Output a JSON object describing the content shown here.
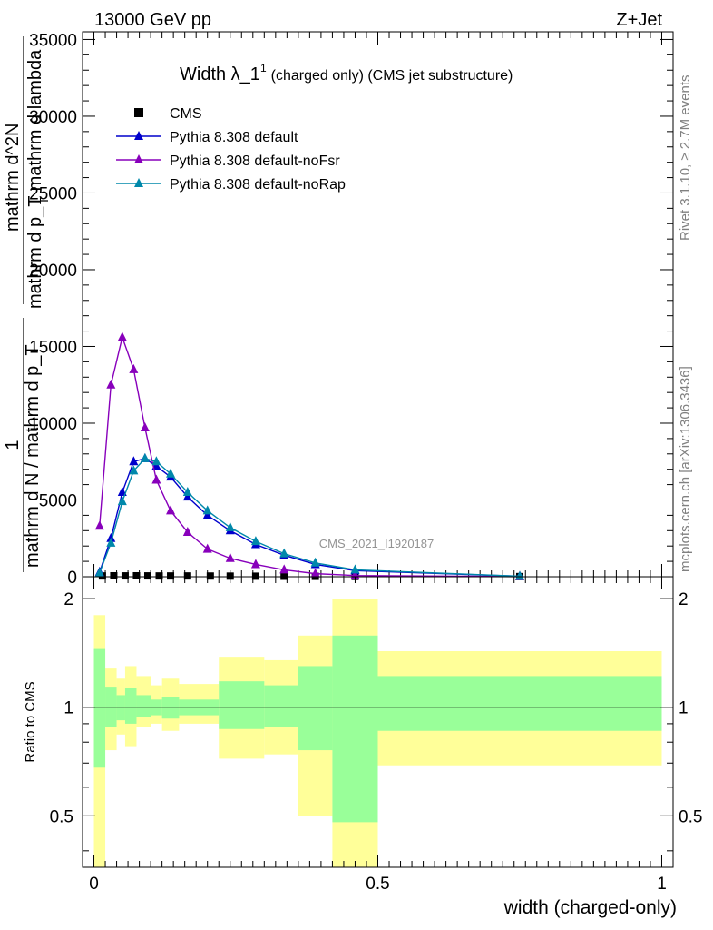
{
  "header": {
    "left": "13000 GeV pp",
    "right": "Z+Jet"
  },
  "side": {
    "rivet": "Rivet 3.1.10, ≥ 2.7M events",
    "mcplots": "mcplots.cern.ch [arXiv:1306.3436]"
  },
  "watermark": "CMS_2021_I1920187",
  "chart_data": [
    {
      "type": "line",
      "title": "Width λ_1",
      "title_sup": "1",
      "title_suffix": "(charged only) (CMS jet substructure)",
      "ylabel_top": "1",
      "ylabel_lines": [
        "mathrm d N / mathrm d p_T",
        "mathrm d^2N",
        "mathrm d p_T mathrm d lambda"
      ],
      "ylabel_sub": "T",
      "ylim": [
        0,
        35500
      ],
      "xlim": [
        -0.02,
        1.02
      ],
      "y_ticks": [
        0,
        5000,
        10000,
        15000,
        20000,
        25000,
        30000,
        35000
      ],
      "legend": {
        "placement": "top-left",
        "entries": [
          "CMS",
          "Pythia 8.308 default",
          "Pythia 8.308 default-noFsr",
          "Pythia 8.308 default-noRap"
        ]
      },
      "series": [
        {
          "name": "CMS",
          "marker": "square",
          "color": "#000000",
          "x": [
            0.015,
            0.035,
            0.055,
            0.075,
            0.095,
            0.115,
            0.135,
            0.165,
            0.205,
            0.24,
            0.285,
            0.335,
            0.39,
            0.46,
            0.75
          ],
          "y": [
            50,
            60,
            55,
            60,
            55,
            50,
            50,
            50,
            45,
            40,
            35,
            30,
            25,
            20,
            10
          ]
        },
        {
          "name": "Pythia 8.308 default",
          "marker": "triangle",
          "color": "#0000cc",
          "x": [
            0.01,
            0.03,
            0.05,
            0.07,
            0.09,
            0.11,
            0.135,
            0.165,
            0.2,
            0.24,
            0.285,
            0.335,
            0.39,
            0.46,
            0.75
          ],
          "y": [
            300,
            2500,
            5500,
            7500,
            7700,
            7200,
            6500,
            5200,
            4000,
            3000,
            2100,
            1400,
            800,
            400,
            30
          ]
        },
        {
          "name": "Pythia 8.308 default-noFsr",
          "marker": "triangle",
          "color": "#8800bb",
          "x": [
            0.01,
            0.03,
            0.05,
            0.07,
            0.09,
            0.11,
            0.135,
            0.165,
            0.2,
            0.24,
            0.285,
            0.335,
            0.39,
            0.46,
            0.75
          ],
          "y": [
            3300,
            12500,
            15600,
            13500,
            9700,
            6300,
            4300,
            2900,
            1800,
            1200,
            800,
            450,
            200,
            80,
            5
          ]
        },
        {
          "name": "Pythia 8.308 default-noRap",
          "marker": "triangle",
          "color": "#0088aa",
          "x": [
            0.01,
            0.03,
            0.05,
            0.07,
            0.09,
            0.11,
            0.135,
            0.165,
            0.2,
            0.24,
            0.285,
            0.335,
            0.39,
            0.46,
            0.75
          ],
          "y": [
            250,
            2200,
            4900,
            6900,
            7700,
            7500,
            6700,
            5500,
            4300,
            3200,
            2300,
            1500,
            900,
            450,
            30
          ]
        }
      ]
    },
    {
      "type": "area",
      "ylabel": "Ratio to CMS",
      "xlabel": "width (charged-only)",
      "log_scale_y": true,
      "ylim": [
        0.36,
        2.3
      ],
      "xlim": [
        -0.02,
        1.02
      ],
      "y_ticks": [
        0.5,
        1,
        2
      ],
      "x_ticks": [
        0,
        0.5,
        1
      ],
      "reference": 1,
      "bins": [
        {
          "lo": 0.0,
          "hi": 0.02,
          "yellow": [
            0.3,
            1.8
          ],
          "green": [
            0.68,
            1.45
          ]
        },
        {
          "lo": 0.02,
          "hi": 0.04,
          "yellow": [
            0.76,
            1.28
          ],
          "green": [
            0.88,
            1.14
          ]
        },
        {
          "lo": 0.04,
          "hi": 0.055,
          "yellow": [
            0.84,
            1.2
          ],
          "green": [
            0.92,
            1.08
          ]
        },
        {
          "lo": 0.055,
          "hi": 0.075,
          "yellow": [
            0.78,
            1.3
          ],
          "green": [
            0.9,
            1.13
          ]
        },
        {
          "lo": 0.075,
          "hi": 0.1,
          "yellow": [
            0.88,
            1.22
          ],
          "green": [
            0.94,
            1.08
          ]
        },
        {
          "lo": 0.1,
          "hi": 0.12,
          "yellow": [
            0.9,
            1.15
          ],
          "green": [
            0.95,
            1.05
          ]
        },
        {
          "lo": 0.12,
          "hi": 0.15,
          "yellow": [
            0.86,
            1.2
          ],
          "green": [
            0.93,
            1.07
          ]
        },
        {
          "lo": 0.15,
          "hi": 0.22,
          "yellow": [
            0.9,
            1.16
          ],
          "green": [
            0.95,
            1.05
          ]
        },
        {
          "lo": 0.22,
          "hi": 0.3,
          "yellow": [
            0.72,
            1.38
          ],
          "green": [
            0.87,
            1.18
          ]
        },
        {
          "lo": 0.3,
          "hi": 0.36,
          "yellow": [
            0.74,
            1.35
          ],
          "green": [
            0.88,
            1.15
          ]
        },
        {
          "lo": 0.36,
          "hi": 0.42,
          "yellow": [
            0.5,
            1.58
          ],
          "green": [
            0.76,
            1.3
          ]
        },
        {
          "lo": 0.42,
          "hi": 0.5,
          "yellow": [
            0.3,
            2.0
          ],
          "green": [
            0.48,
            1.58
          ]
        },
        {
          "lo": 0.5,
          "hi": 1.0,
          "yellow": [
            0.69,
            1.43
          ],
          "green": [
            0.86,
            1.22
          ]
        }
      ],
      "colors": {
        "yellow": "#ffff99",
        "green": "#99ff99"
      }
    }
  ]
}
